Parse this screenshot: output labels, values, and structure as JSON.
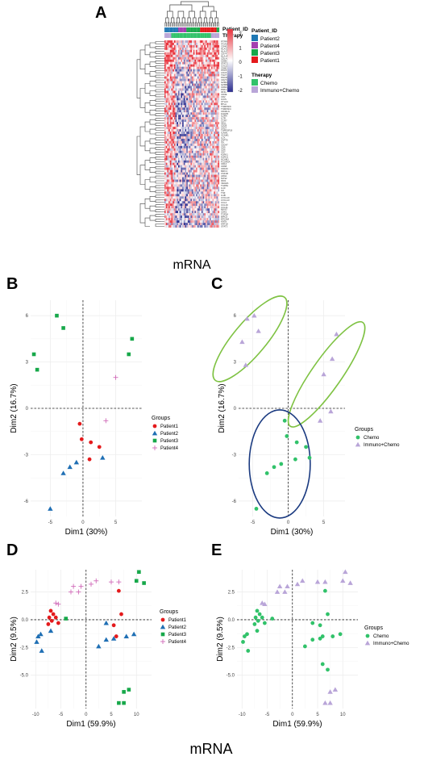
{
  "panels": {
    "A": {
      "letter": "A",
      "caption": "mRNA"
    },
    "B": {
      "letter": "B"
    },
    "C": {
      "letter": "C"
    },
    "D": {
      "letter": "D"
    },
    "E": {
      "letter": "E"
    }
  },
  "footer_caption": "mRNA",
  "colors": {
    "patient1": "#e41a1c",
    "patient2": "#1f6fb4",
    "patient3": "#17a84a",
    "patient4": "#d06ab8",
    "patient2_legend": "#1f78b4",
    "patient4_legend": "#a43fb0",
    "chemo": "#31c26a",
    "immuno": "#b9a5d8",
    "heat_high": "#e8303a",
    "heat_mid": "#ffffff",
    "heat_low": "#2b2d8f"
  },
  "heatmap": {
    "annotation_labels": [
      "Patient_ID",
      "Therapy"
    ],
    "scale": {
      "ticks": [
        "2",
        "1",
        "0",
        "-1",
        "-2"
      ],
      "min": -2,
      "max": 2
    },
    "legend_patient_title": "Patient_ID",
    "legend_patient_items": [
      "Patient2",
      "Patient4",
      "Patient3",
      "Patient1"
    ],
    "legend_therapy_title": "Therapy",
    "legend_therapy_items": [
      "Chemo",
      "Immuno+Chemo"
    ],
    "gene_labels": [
      "PTPRC",
      "ITGAX",
      "CD4E",
      "HLA-DRB",
      "HLA-DRA",
      "CD74",
      "HLA-A",
      "CD1A",
      "CD86",
      "STAT1",
      "CXCL9",
      "CD80",
      "CCL5",
      "LAG3",
      "TIGIT",
      "PDCD1",
      "CD274",
      "GZMA",
      "GZMB",
      "CD8A",
      "PRF1",
      "IFNG",
      "CD3E",
      "CD2",
      "ICOS",
      "CTLA4",
      "BTLA",
      "TNFRSF9",
      "TNFRSF4",
      "CD40LG",
      "FOXP3",
      "IL2RA",
      "IL7R",
      "CCR7",
      "SELL",
      "CD28",
      "CD27",
      "TNFRSF18",
      "ICAM1",
      "VCAM1",
      "LCK",
      "ZAP70",
      "ITK",
      "CD247",
      "CD5",
      "CD6",
      "CD7",
      "KLRK1",
      "KLRD1",
      "NCAM1",
      "FCGR3A",
      "CD14",
      "CD68",
      "CD163",
      "MRC1",
      "CSF1R",
      "ARG1",
      "NOS2",
      "IDO1",
      "VEGFA",
      "TGFB1",
      "IL10",
      "IL6",
      "TNF",
      "IL1B",
      "CXCL10",
      "CXCL13",
      "CCL2",
      "CCL19",
      "CCL21",
      "MKI67",
      "CDK1",
      "TOP2A",
      "BIRC5",
      "EPCAM",
      "KRT8",
      "KRT18",
      "STAT3"
    ],
    "patient_order": [
      0,
      0,
      0,
      0,
      0,
      0,
      0,
      0,
      0,
      0,
      1,
      1,
      1,
      1,
      1,
      1,
      2,
      2,
      2,
      2,
      2,
      2,
      2,
      2,
      2,
      2,
      3,
      3,
      3,
      3,
      3,
      3,
      3,
      3,
      3,
      3,
      3,
      3,
      2,
      2
    ],
    "therapy_order": [
      1,
      1,
      1,
      1,
      1,
      0,
      0,
      0,
      0,
      0,
      0,
      0,
      0,
      0,
      0,
      0,
      0,
      0,
      0,
      0,
      0,
      0,
      0,
      0,
      0,
      0,
      0,
      0,
      0,
      0,
      0,
      0,
      0,
      0,
      1,
      1,
      1,
      1,
      1,
      1
    ],
    "sample_labels": []
  },
  "pca_small": [
    {
      "id": "B",
      "chart_data": {
        "type": "scatter",
        "xlabel": "Dim1 (30%)",
        "ylabel": "Dim2 (16.7%)",
        "xlim": [
          -8,
          9
        ],
        "ylim": [
          -7,
          7
        ],
        "xticks": [
          -5,
          0,
          5
        ],
        "yticks": [
          6,
          3,
          0,
          -3,
          -6
        ],
        "xtick_labels": [
          "-5",
          "0",
          "5"
        ],
        "ytick_labels": [
          "6",
          "3",
          "0",
          "-3",
          "-6"
        ],
        "legend_title": "Groups",
        "legend_position": "right",
        "series": [
          {
            "name": "Patient1",
            "marker": "circle",
            "color_key": "patient1",
            "points": [
              [
                -0.5,
                -1
              ],
              [
                -0.2,
                -2
              ],
              [
                1.2,
                -2.2
              ],
              [
                2.5,
                -2.5
              ],
              [
                1,
                -3.3
              ]
            ]
          },
          {
            "name": "Patient2",
            "marker": "triangle",
            "color_key": "patient2",
            "points": [
              [
                -1,
                -3.5
              ],
              [
                -2,
                -3.8
              ],
              [
                -3,
                -4.2
              ],
              [
                3,
                -3.2
              ],
              [
                -5,
                -6.5
              ]
            ]
          },
          {
            "name": "Patient3",
            "marker": "square",
            "color_key": "patient3",
            "points": [
              [
                -7.5,
                3.5
              ],
              [
                -7,
                2.5
              ],
              [
                -4,
                6
              ],
              [
                -3,
                5.2
              ],
              [
                7.5,
                4.5
              ],
              [
                7,
                3.5
              ]
            ]
          },
          {
            "name": "Patient4",
            "marker": "cross",
            "color_key": "patient4",
            "points": [
              [
                5,
                2
              ],
              [
                3.5,
                -0.8
              ]
            ]
          }
        ]
      }
    },
    {
      "id": "C",
      "chart_data": {
        "type": "scatter",
        "xlabel": "Dim1 (30%)",
        "ylabel": "Dim2 (16.7%)",
        "xlim": [
          -7,
          8
        ],
        "ylim": [
          -7,
          7
        ],
        "xticks": [
          -5,
          0,
          5
        ],
        "yticks": [
          6,
          3,
          0,
          -3,
          -6
        ],
        "xtick_labels": [
          "-5",
          "0",
          "5"
        ],
        "ytick_labels": [
          "6",
          "3",
          "0",
          "-3",
          "-6"
        ],
        "legend_title": "Groups",
        "legend_position": "right",
        "series": [
          {
            "name": "Chemo",
            "marker": "circle",
            "color_key": "chemo",
            "points": [
              [
                -0.5,
                -0.8
              ],
              [
                -0.2,
                -1.8
              ],
              [
                1.2,
                -2.2
              ],
              [
                2.5,
                -2.5
              ],
              [
                1,
                -3.3
              ],
              [
                -1,
                -3.6
              ],
              [
                -2,
                -3.8
              ],
              [
                -3,
                -4.2
              ],
              [
                3,
                -3.2
              ],
              [
                -4.5,
                -6.5
              ]
            ]
          },
          {
            "name": "Immuno+Chemo",
            "marker": "triangle",
            "color_key": "immuno",
            "points": [
              [
                -5.8,
                5.8
              ],
              [
                -6.5,
                4.3
              ],
              [
                -6,
                2.8
              ],
              [
                -4.8,
                6
              ],
              [
                -4.2,
                5
              ],
              [
                6.8,
                4.8
              ],
              [
                6.2,
                3.2
              ],
              [
                5,
                2.2
              ],
              [
                4.5,
                -0.8
              ],
              [
                6,
                -0.2
              ]
            ]
          }
        ],
        "ellipses": [
          {
            "group": "Immuno+Chemo",
            "cx": -5.4,
            "cy": 4.5,
            "rx": 2.3,
            "ry": 3.5,
            "rotate": 40,
            "color": "#7ec242"
          },
          {
            "group": "Immuno+Chemo",
            "cx": 5.4,
            "cy": 2.2,
            "rx": 2.1,
            "ry": 4.1,
            "rotate": 35,
            "color": "#7ec242"
          },
          {
            "group": "Chemo",
            "cx": -1.2,
            "cy": -3.6,
            "rx": 4.3,
            "ry": 3.5,
            "rotate": 0,
            "color": "#1a3a80"
          }
        ]
      }
    }
  ],
  "pca_large": [
    {
      "id": "D",
      "chart_data": {
        "type": "scatter",
        "xlabel": "Dim1 (59.9%)",
        "ylabel": "Dim2 (9.5%)",
        "xlim": [
          -11,
          13
        ],
        "ylim": [
          -8,
          4.5
        ],
        "xticks": [
          -10,
          -5,
          0,
          5,
          10
        ],
        "yticks": [
          2.5,
          0,
          -2.5,
          -5
        ],
        "xtick_labels": [
          "-10",
          "-5",
          "0",
          "5",
          "10"
        ],
        "ytick_labels": [
          "2.5",
          "0.0",
          "-2.5",
          "-5.0"
        ],
        "legend_title": "Groups",
        "legend_position": "right",
        "series": [
          {
            "name": "Patient1",
            "marker": "circle",
            "color_key": "patient1",
            "points": [
              [
                -7,
                0.8
              ],
              [
                -6.5,
                0.5
              ],
              [
                -7.3,
                0.2
              ],
              [
                -6.8,
                -0.1
              ],
              [
                -6,
                0.2
              ],
              [
                -7.5,
                -0.4
              ],
              [
                -5.5,
                -0.3
              ],
              [
                6.5,
                2.6
              ],
              [
                7,
                0.5
              ],
              [
                5.5,
                -0.5
              ],
              [
                6,
                -1.5
              ]
            ]
          },
          {
            "name": "Patient2",
            "marker": "triangle",
            "color_key": "patient2",
            "points": [
              [
                -9.5,
                -1.5
              ],
              [
                -9,
                -1.3
              ],
              [
                -9.8,
                -2
              ],
              [
                -8.8,
                -2.8
              ],
              [
                -7,
                -1
              ],
              [
                4,
                -0.3
              ],
              [
                8,
                -1.5
              ],
              [
                9.5,
                -1.3
              ],
              [
                4,
                -1.8
              ],
              [
                2.5,
                -2.4
              ],
              [
                5.5,
                -1.7
              ]
            ]
          },
          {
            "name": "Patient3",
            "marker": "square",
            "color_key": "patient3",
            "points": [
              [
                -4,
                0.1
              ],
              [
                10.5,
                4.3
              ],
              [
                11.5,
                3.3
              ],
              [
                10,
                3.5
              ],
              [
                7.5,
                -6.5
              ],
              [
                8.5,
                -6.3
              ],
              [
                6.5,
                -7.5
              ],
              [
                7.5,
                -7.5
              ]
            ]
          },
          {
            "name": "Patient4",
            "marker": "cross",
            "color_key": "patient4",
            "points": [
              [
                -6,
                1.5
              ],
              [
                -5.5,
                1.4
              ],
              [
                -3,
                2.5
              ],
              [
                -2.5,
                3
              ],
              [
                -1,
                3
              ],
              [
                -1.5,
                2.5
              ],
              [
                1,
                3.2
              ],
              [
                2,
                3.5
              ],
              [
                5,
                3.4
              ],
              [
                6.5,
                3.4
              ]
            ]
          }
        ]
      }
    },
    {
      "id": "E",
      "chart_data": {
        "type": "scatter",
        "xlabel": "Dim1 (59.9%)",
        "ylabel": "Dim2 (9.5%)",
        "xlim": [
          -11,
          13
        ],
        "ylim": [
          -8,
          4.5
        ],
        "xticks": [
          -10,
          -5,
          0,
          5,
          10
        ],
        "yticks": [
          2.5,
          0,
          -2.5,
          -5
        ],
        "xtick_labels": [
          "-10",
          "-5",
          "0",
          "5",
          "10"
        ],
        "ytick_labels": [
          "2.5",
          "0.0",
          "-2.5",
          "-5.0"
        ],
        "legend_title": "Groups",
        "legend_position": "right",
        "series": [
          {
            "name": "Chemo",
            "marker": "circle",
            "color_key": "chemo",
            "points": [
              [
                -7,
                0.8
              ],
              [
                -6.5,
                0.5
              ],
              [
                -7.3,
                0.2
              ],
              [
                -6.8,
                -0.1
              ],
              [
                -6,
                0.2
              ],
              [
                -7.5,
                -0.4
              ],
              [
                -5.5,
                -0.3
              ],
              [
                -9.5,
                -1.5
              ],
              [
                -9,
                -1.3
              ],
              [
                -9.8,
                -2
              ],
              [
                -8.8,
                -2.8
              ],
              [
                -7,
                -1
              ],
              [
                -4,
                0.1
              ],
              [
                6.5,
                2.6
              ],
              [
                7,
                0.5
              ],
              [
                5.5,
                -0.5
              ],
              [
                6,
                -1.5
              ],
              [
                4,
                -0.3
              ],
              [
                8,
                -1.5
              ],
              [
                9.5,
                -1.3
              ],
              [
                4,
                -1.8
              ],
              [
                2.5,
                -2.4
              ],
              [
                5.5,
                -1.7
              ],
              [
                7,
                -4.5
              ],
              [
                6,
                -4
              ]
            ]
          },
          {
            "name": "Immuno+Chemo",
            "marker": "triangle",
            "color_key": "immuno",
            "points": [
              [
                -6,
                1.5
              ],
              [
                -5.5,
                1.4
              ],
              [
                -3,
                2.5
              ],
              [
                -2.5,
                3
              ],
              [
                -1,
                3
              ],
              [
                -1.5,
                2.5
              ],
              [
                1,
                3.2
              ],
              [
                2,
                3.5
              ],
              [
                5,
                3.4
              ],
              [
                6.5,
                3.4
              ],
              [
                10.5,
                4.3
              ],
              [
                11.5,
                3.3
              ],
              [
                10,
                3.5
              ],
              [
                7.5,
                -6.5
              ],
              [
                8.5,
                -6.3
              ],
              [
                6.5,
                -7.5
              ],
              [
                7.5,
                -7.5
              ]
            ]
          }
        ]
      }
    }
  ]
}
